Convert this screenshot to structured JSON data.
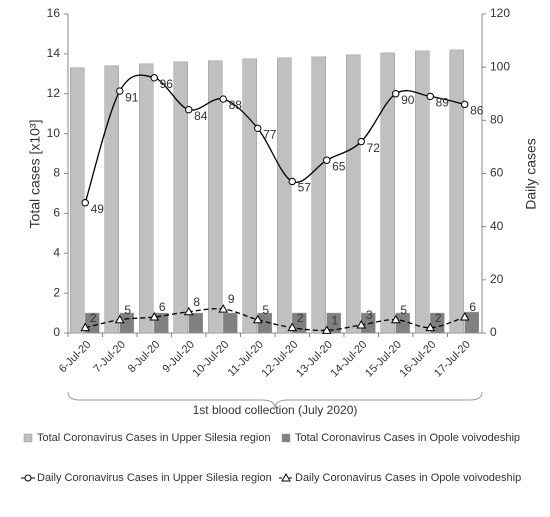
{
  "chart_data": {
    "type": "bar",
    "y_label": "Total cases [x10³]",
    "y2_label": "Daily cases",
    "x_label": "1st blood collection (July 2020)",
    "categories": [
      "6-Jul-20",
      "7-Jul-20",
      "8-Jul-20",
      "9-Jul-20",
      "10-Jul-20",
      "11-Jul-20",
      "12-Jul-20",
      "13-Jul-20",
      "14-Jul-20",
      "15-Jul-20",
      "16-Jul-20",
      "17-Jul-20"
    ],
    "ylim": [
      0,
      16
    ],
    "yticks": [
      0,
      2,
      4,
      6,
      8,
      10,
      12,
      14,
      16
    ],
    "y2lim": [
      0,
      120
    ],
    "y2ticks": [
      0,
      20,
      40,
      60,
      80,
      100,
      120
    ],
    "series": [
      {
        "name": "Total Coronavirus Cases in Upper Silesia region",
        "type": "bar",
        "color": "#c0c0c0",
        "values": [
          13.3,
          13.4,
          13.5,
          13.6,
          13.65,
          13.75,
          13.8,
          13.85,
          13.95,
          14.05,
          14.15,
          14.2
        ]
      },
      {
        "name": "Total Coronavirus Cases in Opole voivodeship",
        "type": "bar",
        "color": "#808080",
        "values": [
          1.0,
          1.0,
          1.0,
          1.0,
          1.0,
          1.0,
          1.0,
          1.0,
          1.0,
          1.0,
          1.0,
          1.05
        ]
      },
      {
        "name": "Daily Coronavirus Cases in Upper Silesia region",
        "type": "line",
        "axis": "y2",
        "color": "#000000",
        "marker": "circle",
        "dashed": false,
        "values": [
          49,
          91,
          96,
          84,
          88,
          77,
          57,
          65,
          72,
          90,
          89,
          86
        ]
      },
      {
        "name": "Daily Coronavirus Cases in Opole voivodeship",
        "type": "line",
        "axis": "y2",
        "color": "#000000",
        "marker": "triangle",
        "dashed": true,
        "values": [
          2,
          5,
          6,
          8,
          9,
          5,
          2,
          1,
          3,
          5,
          2,
          6
        ]
      }
    ]
  }
}
